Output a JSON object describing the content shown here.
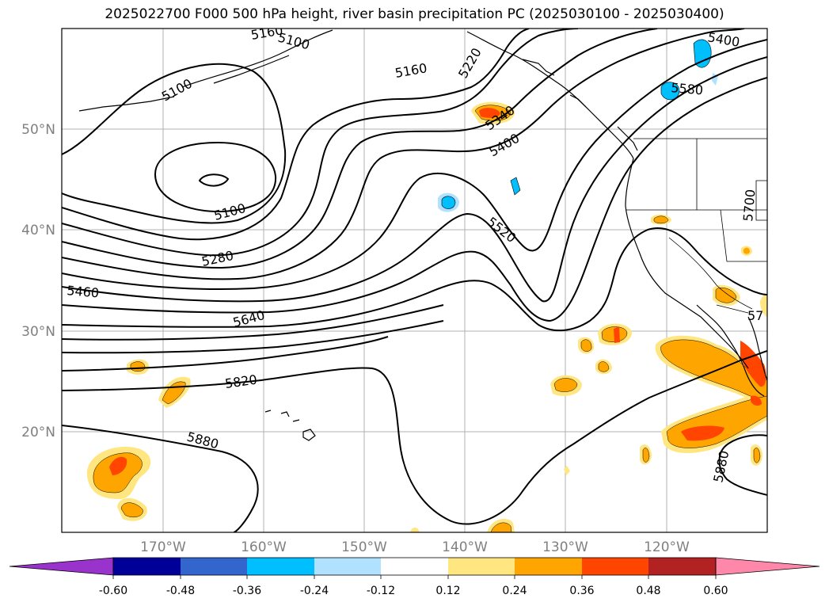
{
  "title": "2025022700 F000 500 hPa height, river basin precipitation PC (2025030100 - 2025030400)",
  "lat_labels": [
    "50°N",
    "40°N",
    "30°N",
    "20°N"
  ],
  "lon_labels": [
    "170°W",
    "160°W",
    "150°W",
    "140°W",
    "130°W",
    "120°W"
  ],
  "contour_labels": [
    "5100",
    "5160",
    "5220",
    "5340",
    "5400",
    "5400",
    "5580",
    "5100",
    "5100",
    "5280",
    "5460",
    "5640",
    "5520",
    "5700",
    "5820",
    "5880",
    "5880",
    "57",
    "5160"
  ],
  "colorbar": {
    "ticks": [
      "-0.60",
      "-0.48",
      "-0.36",
      "-0.24",
      "-0.12",
      "0.12",
      "0.24",
      "0.36",
      "0.48",
      "0.60"
    ],
    "colors": [
      "#9933cc",
      "#000099",
      "#3366cc",
      "#00bfff",
      "#b0e2ff",
      "#ffffff",
      "#ffe680",
      "#ffa500",
      "#ff4500",
      "#b22222",
      "#ff88aa"
    ]
  }
}
